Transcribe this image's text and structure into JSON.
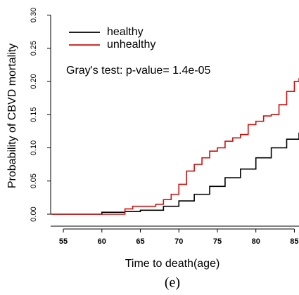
{
  "chart_data": {
    "type": "line",
    "step": true,
    "xlabel": "Time to death(age)",
    "ylabel": "Probability of CBVD mortality",
    "annotation": "Gray's test: p-value= 1.4e-05",
    "caption": "(e)",
    "xlim": [
      53.35,
      85.6
    ],
    "ylim": [
      -0.018,
      0.31
    ],
    "xticks": [
      55,
      60,
      65,
      70,
      75,
      80,
      85
    ],
    "yticks": [
      {
        "value": 0,
        "label": "0.00"
      },
      {
        "value": 0.05,
        "label": "0.05"
      },
      {
        "value": 0.1,
        "label": "0.10"
      },
      {
        "value": 0.15,
        "label": "0.15"
      },
      {
        "value": 0.2,
        "label": "0.20"
      },
      {
        "value": 0.25,
        "label": "0.25"
      },
      {
        "value": 0.3,
        "label": "0.30"
      }
    ],
    "series": [
      {
        "name": "healthy",
        "color": "#000000",
        "x": [
          53.4,
          60,
          63,
          65,
          68,
          70,
          72,
          74,
          76,
          78,
          80,
          82,
          84,
          85.6
        ],
        "values": [
          0,
          0.003,
          0.004,
          0.006,
          0.012,
          0.02,
          0.03,
          0.042,
          0.055,
          0.068,
          0.085,
          0.1,
          0.113,
          0.123
        ]
      },
      {
        "name": "unhealthy",
        "color": "#cc1111",
        "x": [
          53.4,
          63,
          64,
          67,
          68,
          69,
          70,
          71,
          72,
          73,
          74,
          75,
          76,
          77,
          78,
          79,
          80,
          81,
          82,
          83,
          84,
          85,
          85.6
        ],
        "values": [
          0,
          0.008,
          0.012,
          0.015,
          0.022,
          0.03,
          0.045,
          0.065,
          0.075,
          0.085,
          0.095,
          0.1,
          0.11,
          0.115,
          0.12,
          0.135,
          0.14,
          0.148,
          0.15,
          0.165,
          0.185,
          0.2,
          0.205
        ]
      }
    ]
  }
}
